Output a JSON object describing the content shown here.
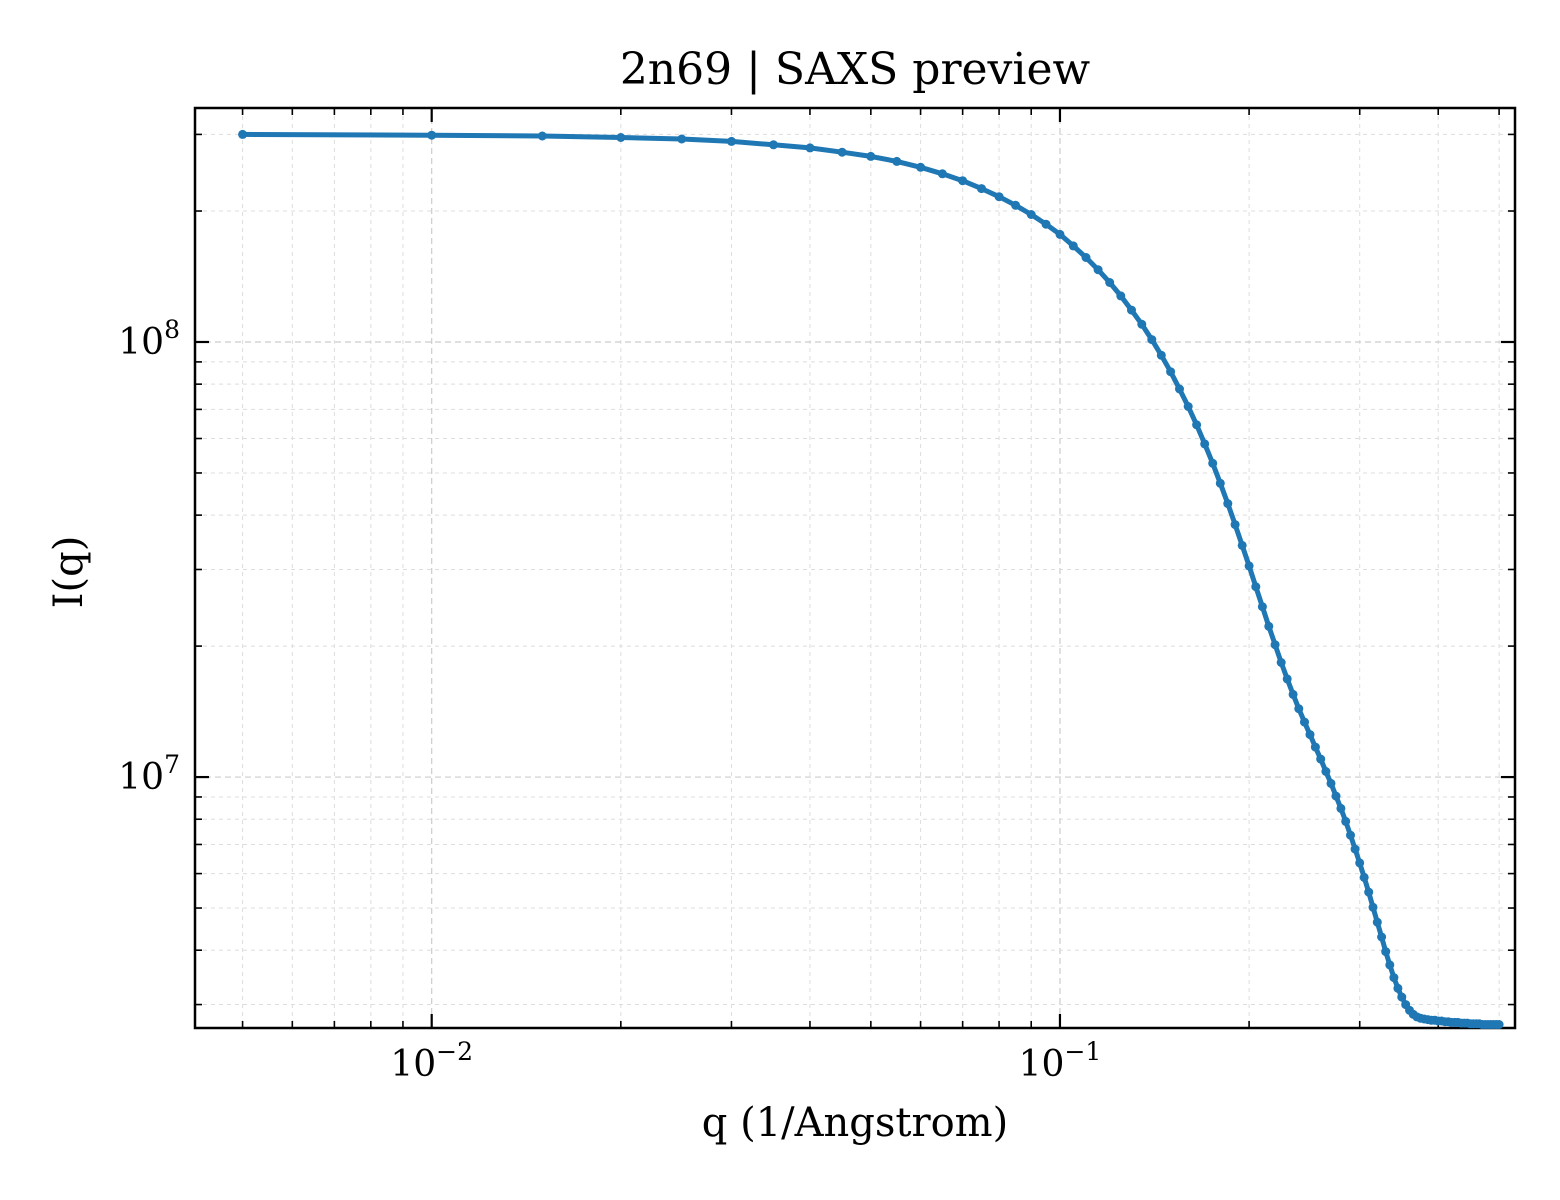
{
  "chart_data": {
    "type": "line",
    "title": "2n69 | SAXS preview",
    "xlabel": "q (1/Angstrom)",
    "ylabel": "I(q)",
    "xscale": "log",
    "yscale": "log",
    "xlim": [
      0.0042,
      0.53
    ],
    "ylim": [
      2650000,
      345000000
    ],
    "grid": true,
    "legend": "none",
    "marker": "circle",
    "color": "#1f77b4",
    "x_ticks": [
      {
        "base": "10",
        "exp": "−2",
        "value": 0.01
      },
      {
        "base": "10",
        "exp": "−1",
        "value": 0.1
      }
    ],
    "y_ticks": [
      {
        "base": "10",
        "exp": "7",
        "value": 10000000
      },
      {
        "base": "10",
        "exp": "8",
        "value": 100000000
      }
    ],
    "series": [
      {
        "x": [
          0.005,
          0.01,
          0.015,
          0.02,
          0.025,
          0.03,
          0.035,
          0.04,
          0.045,
          0.05,
          0.055,
          0.06,
          0.065,
          0.07,
          0.075,
          0.08,
          0.085,
          0.09,
          0.095,
          0.1,
          0.105,
          0.11,
          0.115,
          0.12,
          0.125,
          0.13,
          0.135,
          0.14,
          0.145,
          0.15,
          0.155,
          0.16,
          0.165,
          0.17,
          0.175,
          0.18,
          0.185,
          0.19,
          0.195,
          0.2,
          0.205,
          0.21,
          0.215,
          0.22,
          0.225,
          0.23,
          0.235,
          0.24,
          0.245,
          0.25,
          0.255,
          0.26,
          0.265,
          0.27,
          0.275,
          0.28,
          0.285,
          0.29,
          0.295,
          0.3,
          0.305,
          0.31,
          0.315,
          0.32,
          0.325,
          0.33,
          0.335,
          0.34,
          0.345,
          0.35,
          0.355,
          0.36,
          0.365,
          0.37,
          0.375,
          0.38,
          0.385,
          0.39,
          0.395,
          0.4,
          0.405,
          0.41,
          0.415,
          0.42,
          0.425,
          0.43,
          0.435,
          0.44,
          0.445,
          0.45,
          0.455,
          0.46,
          0.465,
          0.47,
          0.475,
          0.48,
          0.485,
          0.49,
          0.495,
          0.5
        ],
        "y": [
          300000000,
          298800000,
          297500000,
          295200000,
          292800000,
          289100000,
          284000000,
          279300000,
          273000000,
          267000000,
          260000000,
          252100000,
          243500000,
          234800000,
          225200000,
          215800000,
          206100000,
          196300000,
          186500000,
          176700000,
          166300000,
          156400000,
          146600000,
          137000000,
          127600000,
          118400000,
          109800000,
          101300000,
          93190000,
          85430000,
          77990000,
          71080000,
          64510000,
          58300000,
          52620000,
          47340000,
          42510000,
          38050000,
          34070000,
          30570000,
          27390000,
          24640000,
          22210000,
          20150000,
          18340000,
          16810000,
          15490000,
          14360000,
          13380000,
          12520000,
          11720000,
          11000000,
          10300000,
          9670000,
          9040000,
          8470000,
          7910000,
          7350000,
          6830000,
          6350000,
          5880000,
          5440000,
          5020000,
          4640000,
          4290000,
          3970000,
          3700000,
          3460000,
          3270000,
          3120000,
          3000000,
          2910000,
          2850000,
          2810000,
          2790000,
          2780000,
          2770000,
          2760000,
          2760000,
          2750000,
          2750000,
          2740000,
          2740000,
          2730000,
          2730000,
          2730000,
          2720000,
          2720000,
          2720000,
          2710000,
          2710000,
          2710000,
          2710000,
          2700000,
          2700000,
          2700000,
          2700000,
          2700000,
          2700000,
          2700000
        ]
      }
    ]
  }
}
